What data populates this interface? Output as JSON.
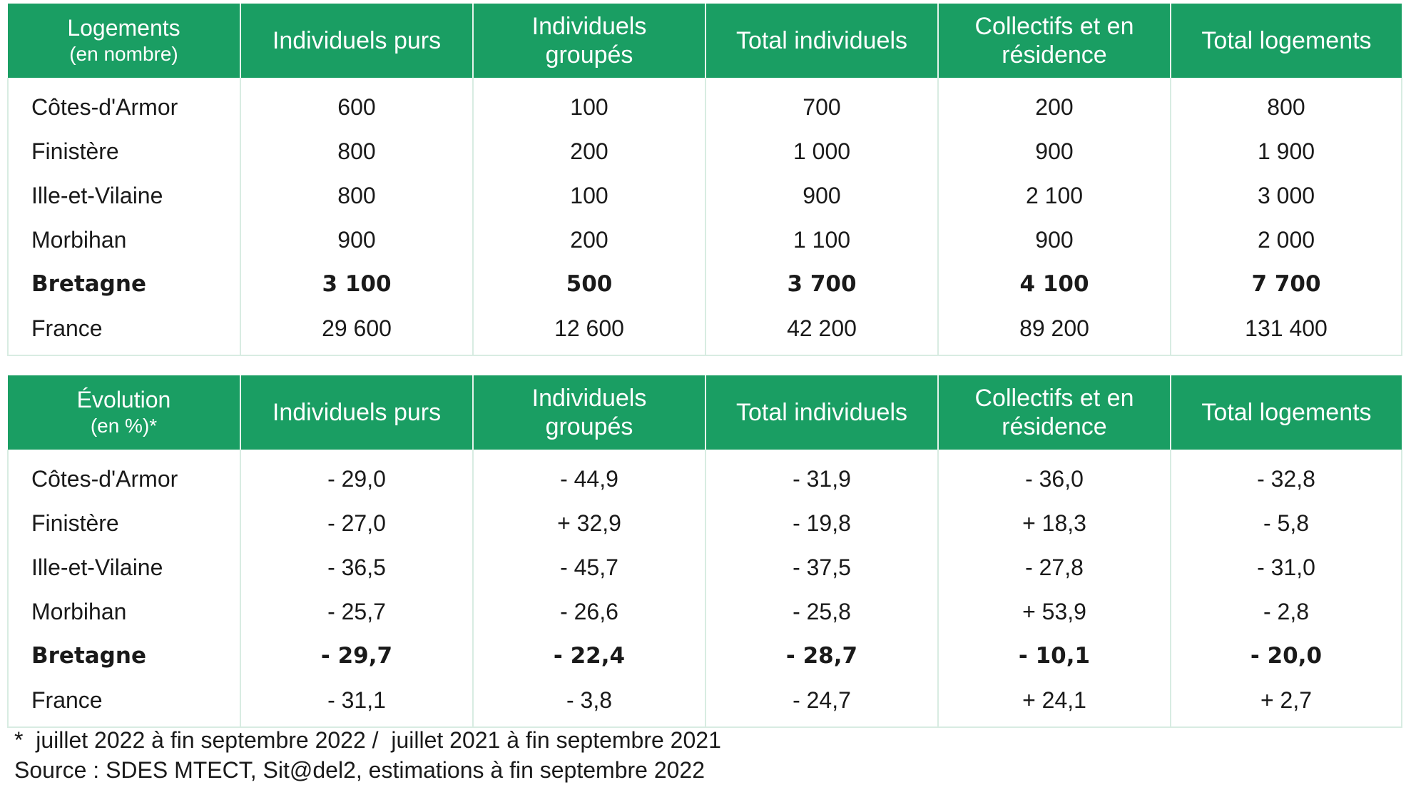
{
  "table1": {
    "headers": {
      "first_main": "Logements",
      "first_sub": "(en nombre)",
      "col1": [
        "Individuels purs"
      ],
      "col2": [
        "Individuels",
        "groupés"
      ],
      "col3": [
        "Total individuels"
      ],
      "col4": [
        "Collectifs et en",
        "résidence"
      ],
      "col5": [
        "Total logements"
      ]
    },
    "rows": [
      {
        "label": "Côtes-d'Armor",
        "values": [
          "600",
          "100",
          "700",
          "200",
          "800"
        ]
      },
      {
        "label": "Finistère",
        "values": [
          "800",
          "200",
          "1 000",
          "900",
          "1 900"
        ]
      },
      {
        "label": "Ille-et-Vilaine",
        "values": [
          "800",
          "100",
          "900",
          "2 100",
          "3 000"
        ]
      },
      {
        "label": "Morbihan",
        "values": [
          "900",
          "200",
          "1 100",
          "900",
          "2 000"
        ]
      },
      {
        "label": "Bretagne",
        "values": [
          "3 100",
          "500",
          "3 700",
          "4 100",
          "7 700"
        ]
      },
      {
        "label": "France",
        "values": [
          "29 600",
          "12 600",
          "42 200",
          "89 200",
          "131 400"
        ]
      }
    ]
  },
  "table2": {
    "headers": {
      "first_main": "Évolution",
      "first_sub": "(en %)*",
      "col1": [
        "Individuels purs"
      ],
      "col2": [
        "Individuels",
        "groupés"
      ],
      "col3": [
        "Total individuels"
      ],
      "col4": [
        "Collectifs et en",
        "résidence"
      ],
      "col5": [
        "Total logements"
      ]
    },
    "rows": [
      {
        "label": "Côtes-d'Armor",
        "values": [
          "- 29,0",
          "- 44,9",
          "- 31,9",
          "- 36,0",
          "- 32,8"
        ]
      },
      {
        "label": "Finistère",
        "values": [
          "- 27,0",
          "+ 32,9",
          "- 19,8",
          "+ 18,3",
          "- 5,8"
        ]
      },
      {
        "label": "Ille-et-Vilaine",
        "values": [
          "- 36,5",
          "- 45,7",
          "- 37,5",
          "- 27,8",
          "- 31,0"
        ]
      },
      {
        "label": "Morbihan",
        "values": [
          "- 25,7",
          "- 26,6",
          "- 25,8",
          "+ 53,9",
          "- 2,8"
        ]
      },
      {
        "label": "Bretagne",
        "values": [
          "- 29,7",
          "- 22,4",
          "- 28,7",
          "- 10,1",
          "- 20,0"
        ]
      },
      {
        "label": "France",
        "values": [
          "- 31,1",
          "- 3,8",
          "- 24,7",
          "+ 24,1",
          "+ 2,7"
        ]
      }
    ]
  },
  "notes": {
    "footnote": "*  juillet 2022 à fin septembre 2022 /  juillet 2021 à fin septembre 2021",
    "source": "Source : SDES MTECT, Sit@del2, estimations à fin septembre 2022"
  },
  "colors": {
    "header_bg": "#1a9e63",
    "header_text": "#ffffff",
    "grid": "#d8ece2"
  }
}
